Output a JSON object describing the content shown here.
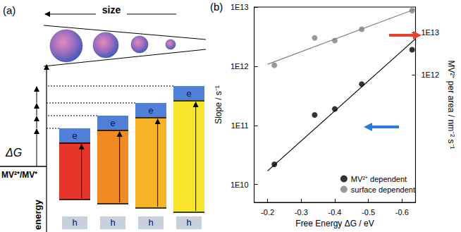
{
  "diagram": {
    "label": "(a)",
    "size_label": "size",
    "delta_g_label": "ΔG",
    "redox_label": "MV²⁺/MV⁺",
    "energy_label": "energy",
    "levels": [
      {
        "electron": "e",
        "hole": "h",
        "color": "#e8352b"
      },
      {
        "electron": "e",
        "hole": "h",
        "color": "#f08a22"
      },
      {
        "electron": "e",
        "hole": "h",
        "color": "#f6b325"
      },
      {
        "electron": "e",
        "hole": "h",
        "color": "#f6e52c"
      }
    ]
  },
  "chart_data": {
    "type": "scatter",
    "label": "(b)",
    "x_label": "Free Energy ΔG / eV",
    "y_label": "Slope / s⁻¹",
    "y2_label": "MV²⁺ per area / nm⁻² s⁻¹",
    "log": "y",
    "grid": false,
    "legend": "lower right",
    "xlim": [
      -0.16,
      -0.64
    ],
    "xticks": [
      -0.2,
      -0.3,
      -0.4,
      -0.5,
      -0.6
    ],
    "ylim": [
      5000000000.0,
      10000000000000.0
    ],
    "yticks": [
      {
        "value": 10000000000.0,
        "label": "1E10"
      },
      {
        "value": 100000000000.0,
        "label": "1E11"
      },
      {
        "value": 1000000000000.0,
        "label": "1E12"
      },
      {
        "value": 10000000000000.0,
        "label": "1E13"
      }
    ],
    "y2lim": [
      1000000000.0,
      40000000000000.0
    ],
    "y2ticks": [
      {
        "value": 1000000000000.0,
        "label": "1E12"
      },
      {
        "value": 10000000000000.0,
        "label": "1E13"
      }
    ],
    "x": [
      -0.22,
      -0.34,
      -0.4,
      -0.48,
      -0.63
    ],
    "series": [
      {
        "name": "MV²⁺ dependent",
        "color": "#000000",
        "marker": "circle",
        "values": [
          22000000000.0,
          150000000000.0,
          190000000000.0,
          500000000000.0,
          1900000000000.0
        ],
        "fit": {
          "x": [
            -0.2,
            -0.64
          ],
          "values": [
            17000000000.0,
            2900000000000.0
          ]
        }
      },
      {
        "name": "surface dependent",
        "color": "#808080",
        "marker": "circle",
        "axis": "y2",
        "values": [
          1700000000000.0,
          7500000000000.0,
          6500000000000.0,
          12000000000000.0,
          33000000000000.0
        ],
        "fit": {
          "x": [
            -0.2,
            -0.64
          ],
          "values": [
            1800000000000.0,
            36000000000000.0
          ]
        }
      }
    ]
  }
}
